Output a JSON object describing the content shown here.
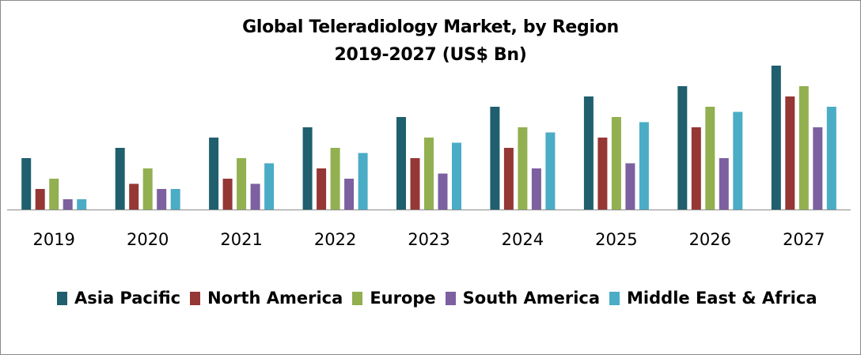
{
  "chart_data": {
    "type": "bar",
    "title": "Global Teleradiology Market, by Region",
    "subtitle": "2019-2027 (US$ Bn)",
    "categories": [
      "2019",
      "2020",
      "2021",
      "2022",
      "2023",
      "2024",
      "2025",
      "2026",
      "2027"
    ],
    "series": [
      {
        "name": "Asia Pacific",
        "color": "#1f5f6e",
        "values": [
          5,
          6,
          7,
          8,
          9,
          10,
          11,
          12,
          14
        ]
      },
      {
        "name": "North America",
        "color": "#953735",
        "values": [
          2,
          2.5,
          3,
          4,
          5,
          6,
          7,
          8,
          11
        ]
      },
      {
        "name": "Europe",
        "color": "#92b050",
        "values": [
          3,
          4,
          5,
          6,
          7,
          8,
          9,
          10,
          12
        ]
      },
      {
        "name": "South America",
        "color": "#7c60a0",
        "values": [
          1,
          2,
          2.5,
          3,
          3.5,
          4,
          4.5,
          5,
          8
        ]
      },
      {
        "name": "Middle East & Africa",
        "color": "#4bacc6",
        "values": [
          1,
          2,
          4.5,
          5.5,
          6.5,
          7.5,
          8.5,
          9.5,
          10
        ]
      }
    ],
    "ylim": [
      0,
      14
    ],
    "grid": false,
    "legend_position": "bottom"
  }
}
